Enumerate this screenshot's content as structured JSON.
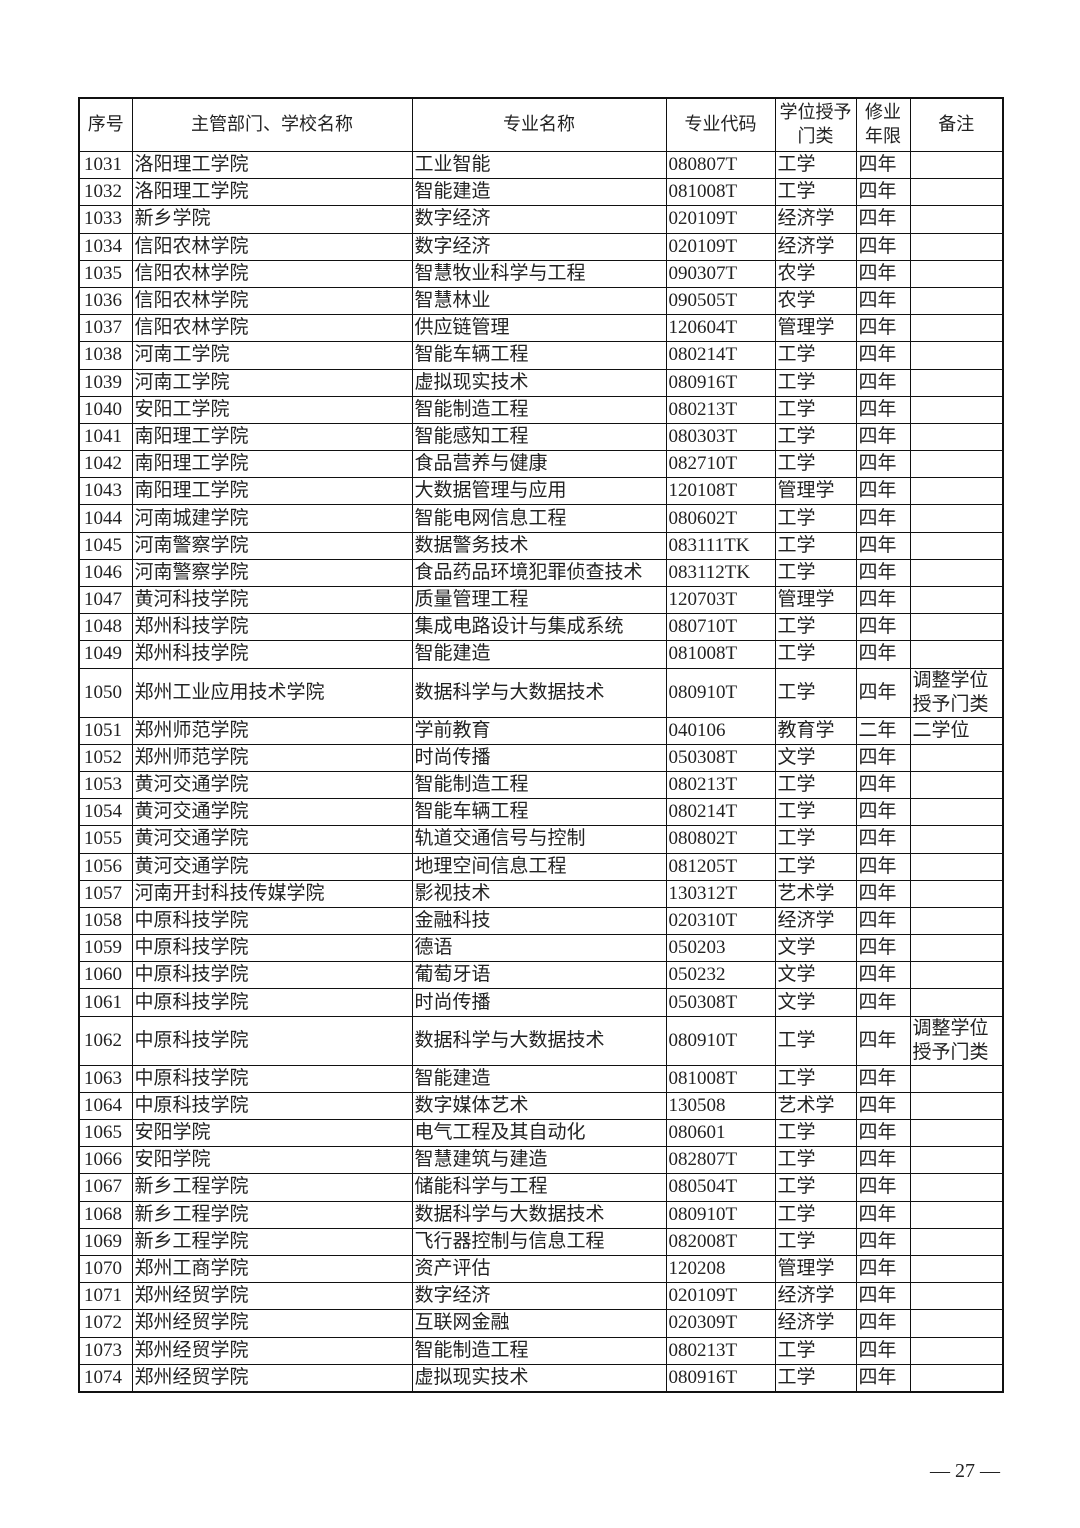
{
  "headers": [
    "序号",
    "主管部门、学校名称",
    "专业名称",
    "专业代码",
    "学位授予门类",
    "修业年限",
    "备注"
  ],
  "rows": [
    [
      "1031",
      "洛阳理工学院",
      "工业智能",
      "080807T",
      "工学",
      "四年",
      ""
    ],
    [
      "1032",
      "洛阳理工学院",
      "智能建造",
      "081008T",
      "工学",
      "四年",
      ""
    ],
    [
      "1033",
      "新乡学院",
      "数字经济",
      "020109T",
      "经济学",
      "四年",
      ""
    ],
    [
      "1034",
      "信阳农林学院",
      "数字经济",
      "020109T",
      "经济学",
      "四年",
      ""
    ],
    [
      "1035",
      "信阳农林学院",
      "智慧牧业科学与工程",
      "090307T",
      "农学",
      "四年",
      ""
    ],
    [
      "1036",
      "信阳农林学院",
      "智慧林业",
      "090505T",
      "农学",
      "四年",
      ""
    ],
    [
      "1037",
      "信阳农林学院",
      "供应链管理",
      "120604T",
      "管理学",
      "四年",
      ""
    ],
    [
      "1038",
      "河南工学院",
      "智能车辆工程",
      "080214T",
      "工学",
      "四年",
      ""
    ],
    [
      "1039",
      "河南工学院",
      "虚拟现实技术",
      "080916T",
      "工学",
      "四年",
      ""
    ],
    [
      "1040",
      "安阳工学院",
      "智能制造工程",
      "080213T",
      "工学",
      "四年",
      ""
    ],
    [
      "1041",
      "南阳理工学院",
      "智能感知工程",
      "080303T",
      "工学",
      "四年",
      ""
    ],
    [
      "1042",
      "南阳理工学院",
      "食品营养与健康",
      "082710T",
      "工学",
      "四年",
      ""
    ],
    [
      "1043",
      "南阳理工学院",
      "大数据管理与应用",
      "120108T",
      "管理学",
      "四年",
      ""
    ],
    [
      "1044",
      "河南城建学院",
      "智能电网信息工程",
      "080602T",
      "工学",
      "四年",
      ""
    ],
    [
      "1045",
      "河南警察学院",
      "数据警务技术",
      "083111TK",
      "工学",
      "四年",
      ""
    ],
    [
      "1046",
      "河南警察学院",
      "食品药品环境犯罪侦查技术",
      "083112TK",
      "工学",
      "四年",
      ""
    ],
    [
      "1047",
      "黄河科技学院",
      "质量管理工程",
      "120703T",
      "管理学",
      "四年",
      ""
    ],
    [
      "1048",
      "郑州科技学院",
      "集成电路设计与集成系统",
      "080710T",
      "工学",
      "四年",
      ""
    ],
    [
      "1049",
      "郑州科技学院",
      "智能建造",
      "081008T",
      "工学",
      "四年",
      ""
    ],
    [
      "1050",
      "郑州工业应用技术学院",
      "数据科学与大数据技术",
      "080910T",
      "工学",
      "四年",
      "调整学位授予门类"
    ],
    [
      "1051",
      "郑州师范学院",
      "学前教育",
      "040106",
      "教育学",
      "二年",
      "二学位"
    ],
    [
      "1052",
      "郑州师范学院",
      "时尚传播",
      "050308T",
      "文学",
      "四年",
      ""
    ],
    [
      "1053",
      "黄河交通学院",
      "智能制造工程",
      "080213T",
      "工学",
      "四年",
      ""
    ],
    [
      "1054",
      "黄河交通学院",
      "智能车辆工程",
      "080214T",
      "工学",
      "四年",
      ""
    ],
    [
      "1055",
      "黄河交通学院",
      "轨道交通信号与控制",
      "080802T",
      "工学",
      "四年",
      ""
    ],
    [
      "1056",
      "黄河交通学院",
      "地理空间信息工程",
      "081205T",
      "工学",
      "四年",
      ""
    ],
    [
      "1057",
      "河南开封科技传媒学院",
      "影视技术",
      "130312T",
      "艺术学",
      "四年",
      ""
    ],
    [
      "1058",
      "中原科技学院",
      "金融科技",
      "020310T",
      "经济学",
      "四年",
      ""
    ],
    [
      "1059",
      "中原科技学院",
      "德语",
      "050203",
      "文学",
      "四年",
      ""
    ],
    [
      "1060",
      "中原科技学院",
      "葡萄牙语",
      "050232",
      "文学",
      "四年",
      ""
    ],
    [
      "1061",
      "中原科技学院",
      "时尚传播",
      "050308T",
      "文学",
      "四年",
      ""
    ],
    [
      "1062",
      "中原科技学院",
      "数据科学与大数据技术",
      "080910T",
      "工学",
      "四年",
      "调整学位授予门类"
    ],
    [
      "1063",
      "中原科技学院",
      "智能建造",
      "081008T",
      "工学",
      "四年",
      ""
    ],
    [
      "1064",
      "中原科技学院",
      "数字媒体艺术",
      "130508",
      "艺术学",
      "四年",
      ""
    ],
    [
      "1065",
      "安阳学院",
      "电气工程及其自动化",
      "080601",
      "工学",
      "四年",
      ""
    ],
    [
      "1066",
      "安阳学院",
      "智慧建筑与建造",
      "082807T",
      "工学",
      "四年",
      ""
    ],
    [
      "1067",
      "新乡工程学院",
      "储能科学与工程",
      "080504T",
      "工学",
      "四年",
      ""
    ],
    [
      "1068",
      "新乡工程学院",
      "数据科学与大数据技术",
      "080910T",
      "工学",
      "四年",
      ""
    ],
    [
      "1069",
      "新乡工程学院",
      "飞行器控制与信息工程",
      "082008T",
      "工学",
      "四年",
      ""
    ],
    [
      "1070",
      "郑州工商学院",
      "资产评估",
      "120208",
      "管理学",
      "四年",
      ""
    ],
    [
      "1071",
      "郑州经贸学院",
      "数字经济",
      "020109T",
      "经济学",
      "四年",
      ""
    ],
    [
      "1072",
      "郑州经贸学院",
      "互联网金融",
      "020309T",
      "经济学",
      "四年",
      ""
    ],
    [
      "1073",
      "郑州经贸学院",
      "智能制造工程",
      "080213T",
      "工学",
      "四年",
      ""
    ],
    [
      "1074",
      "郑州经贸学院",
      "虚拟现实技术",
      "080916T",
      "工学",
      "四年",
      ""
    ]
  ],
  "page_number": "— 27 —"
}
